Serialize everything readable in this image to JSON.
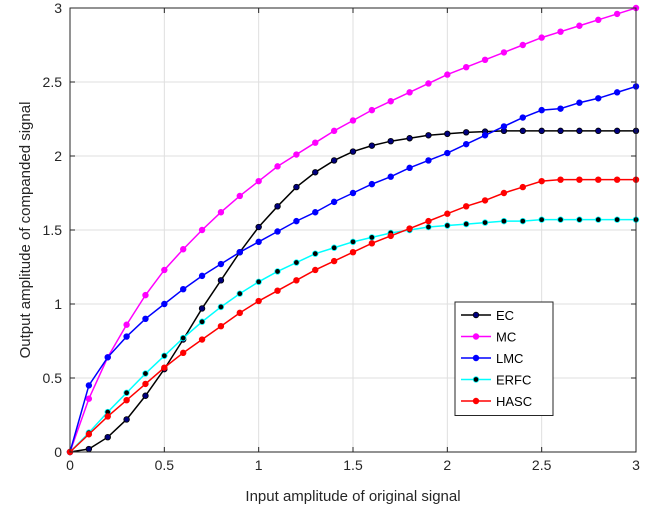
{
  "chart_data": {
    "type": "line",
    "xlabel": "Input amplitude of original signal",
    "ylabel": "Output amplitude of companded signal",
    "xlim": [
      0,
      3
    ],
    "ylim": [
      0,
      3
    ],
    "xticks": [
      "0",
      "0.5",
      "1",
      "1.5",
      "2",
      "2.5",
      "3"
    ],
    "yticks": [
      "0",
      "0.5",
      "1",
      "1.5",
      "2",
      "2.5",
      "3"
    ],
    "grid": true,
    "legend_position": "lower-right",
    "x": [
      0,
      0.1,
      0.2,
      0.3,
      0.4,
      0.5,
      0.6,
      0.7,
      0.8,
      0.9,
      1.0,
      1.1,
      1.2,
      1.3,
      1.4,
      1.5,
      1.6,
      1.7,
      1.8,
      1.9,
      2.0,
      2.1,
      2.2,
      2.3,
      2.4,
      2.5,
      2.6,
      2.7,
      2.8,
      2.9,
      3.0
    ],
    "series": [
      {
        "name": "EC",
        "color": "#000000",
        "marker_color": "#00007f",
        "values": [
          0,
          0.02,
          0.1,
          0.22,
          0.38,
          0.56,
          0.76,
          0.97,
          1.16,
          1.35,
          1.52,
          1.66,
          1.79,
          1.89,
          1.97,
          2.03,
          2.07,
          2.1,
          2.12,
          2.14,
          2.15,
          2.16,
          2.165,
          2.17,
          2.17,
          2.17,
          2.17,
          2.17,
          2.17,
          2.17,
          2.17
        ]
      },
      {
        "name": "MC",
        "color": "#ff00ff",
        "marker_color": "#ff00ff",
        "values": [
          0,
          0.36,
          0.64,
          0.86,
          1.06,
          1.23,
          1.37,
          1.5,
          1.62,
          1.73,
          1.83,
          1.93,
          2.01,
          2.09,
          2.17,
          2.24,
          2.31,
          2.37,
          2.43,
          2.49,
          2.55,
          2.6,
          2.65,
          2.7,
          2.75,
          2.8,
          2.84,
          2.88,
          2.92,
          2.96,
          3.0
        ]
      },
      {
        "name": "LMC",
        "color": "#0000ff",
        "marker_color": "#0000ff",
        "values": [
          0,
          0.45,
          0.64,
          0.78,
          0.9,
          1.0,
          1.1,
          1.19,
          1.27,
          1.35,
          1.42,
          1.49,
          1.56,
          1.62,
          1.69,
          1.75,
          1.81,
          1.86,
          1.92,
          1.97,
          2.02,
          2.08,
          2.14,
          2.2,
          2.26,
          2.31,
          2.32,
          2.36,
          2.39,
          2.43,
          2.47
        ]
      },
      {
        "name": "ERFC",
        "color": "#00ffff",
        "marker_color": "#000000",
        "values": [
          0,
          0.13,
          0.27,
          0.4,
          0.53,
          0.65,
          0.77,
          0.88,
          0.98,
          1.07,
          1.15,
          1.22,
          1.28,
          1.34,
          1.38,
          1.42,
          1.45,
          1.48,
          1.5,
          1.52,
          1.53,
          1.54,
          1.55,
          1.56,
          1.56,
          1.57,
          1.57,
          1.57,
          1.57,
          1.57,
          1.57
        ]
      },
      {
        "name": "HASC",
        "color": "#ff0000",
        "marker_color": "#ff0000",
        "values": [
          0,
          0.12,
          0.24,
          0.35,
          0.46,
          0.57,
          0.67,
          0.76,
          0.85,
          0.94,
          1.02,
          1.09,
          1.16,
          1.23,
          1.29,
          1.35,
          1.41,
          1.46,
          1.51,
          1.56,
          1.61,
          1.66,
          1.7,
          1.75,
          1.79,
          1.83,
          1.84,
          1.84,
          1.84,
          1.84,
          1.84
        ]
      }
    ]
  }
}
